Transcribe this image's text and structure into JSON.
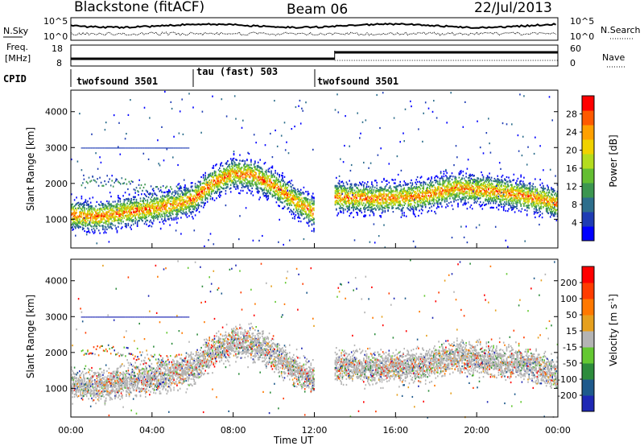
{
  "header": {
    "station": "Blackstone (fitACF)",
    "beam": "Beam 06",
    "date": "22/Jul/2013"
  },
  "noise_panel": {
    "left_label": "N.Sky",
    "right_label": "N.Search",
    "left_ticks": [
      "10^5",
      "10^0"
    ],
    "right_ticks": [
      "10^5",
      "10^0"
    ]
  },
  "freq_panel": {
    "left_label_1": "Freq.",
    "left_label_2": "[MHz]",
    "left_ticks": [
      "18",
      "8"
    ],
    "right_label": "Nave",
    "right_ticks": [
      "60",
      "0"
    ]
  },
  "cpid": {
    "label": "CPID",
    "segments": [
      {
        "name": "twofsound 3501",
        "start_h": 0
      },
      {
        "name": "tau (fast) 503",
        "start_h": 6
      },
      {
        "name": "twofsound 3501",
        "start_h": 12
      }
    ]
  },
  "xaxis": {
    "label": "Time UT",
    "ticks": [
      "00:00",
      "04:00",
      "08:00",
      "12:00",
      "16:00",
      "20:00",
      "00:00"
    ]
  },
  "chart_data": [
    {
      "type": "heatmap",
      "title": "",
      "xlabel": "Time UT",
      "ylabel": "Slant Range [km]",
      "xlim_hours": [
        0,
        24
      ],
      "ylim": [
        200,
        4600
      ],
      "y_ticks": [
        1000,
        2000,
        3000,
        4000
      ],
      "colorbar": {
        "label": "Power [dB]",
        "ticks": [
          "28",
          "24",
          "20",
          "16",
          "12",
          "8",
          "4"
        ],
        "colors": [
          "#0000ff",
          "#1e3cb4",
          "#2d6e8c",
          "#3c9650",
          "#64be32",
          "#b4dc1e",
          "#f0d200",
          "#ffa000",
          "#ff5a00",
          "#ff0000"
        ]
      },
      "band": [
        {
          "t": 0.0,
          "r": 1150
        },
        {
          "t": 1.0,
          "r": 1080
        },
        {
          "t": 2.0,
          "r": 1150
        },
        {
          "t": 3.0,
          "r": 1250
        },
        {
          "t": 4.0,
          "r": 1320
        },
        {
          "t": 5.0,
          "r": 1420
        },
        {
          "t": 6.0,
          "r": 1580
        },
        {
          "t": 7.0,
          "r": 2050
        },
        {
          "t": 8.0,
          "r": 2300
        },
        {
          "t": 9.0,
          "r": 2250
        },
        {
          "t": 10.0,
          "r": 1950
        },
        {
          "t": 11.0,
          "r": 1550
        },
        {
          "t": 12.0,
          "r": 1200
        },
        {
          "t": 13.0,
          "r": 1650
        },
        {
          "t": 15.0,
          "r": 1600
        },
        {
          "t": 17.0,
          "r": 1650
        },
        {
          "t": 19.0,
          "r": 1900
        },
        {
          "t": 21.0,
          "r": 1800
        },
        {
          "t": 23.0,
          "r": 1600
        },
        {
          "t": 24.0,
          "r": 1450
        }
      ]
    },
    {
      "type": "heatmap",
      "title": "",
      "xlabel": "Time UT",
      "ylabel": "Slant Range [km]",
      "xlim_hours": [
        0,
        24
      ],
      "ylim": [
        200,
        4600
      ],
      "y_ticks": [
        1000,
        2000,
        3000,
        4000
      ],
      "colorbar": {
        "label": "Velocity [m s^-1]",
        "ticks": [
          "200",
          "100",
          "50",
          "15",
          "-15",
          "-50",
          "-100",
          "-200"
        ],
        "colors": [
          "#1e28b4",
          "#1e5a8c",
          "#2d8c3c",
          "#64c832",
          "#b4b4b4",
          "#e6a01e",
          "#ff7800",
          "#ff3c00",
          "#ff0000"
        ]
      },
      "band": [
        {
          "t": 0.0,
          "r": 1150
        },
        {
          "t": 1.0,
          "r": 1080
        },
        {
          "t": 2.0,
          "r": 1150
        },
        {
          "t": 3.0,
          "r": 1250
        },
        {
          "t": 4.0,
          "r": 1320
        },
        {
          "t": 5.0,
          "r": 1420
        },
        {
          "t": 6.0,
          "r": 1580
        },
        {
          "t": 7.0,
          "r": 2050
        },
        {
          "t": 8.0,
          "r": 2300
        },
        {
          "t": 9.0,
          "r": 2250
        },
        {
          "t": 10.0,
          "r": 1950
        },
        {
          "t": 11.0,
          "r": 1550
        },
        {
          "t": 12.0,
          "r": 1200
        },
        {
          "t": 13.0,
          "r": 1650
        },
        {
          "t": 15.0,
          "r": 1600
        },
        {
          "t": 17.0,
          "r": 1650
        },
        {
          "t": 19.0,
          "r": 1900
        },
        {
          "t": 21.0,
          "r": 1800
        },
        {
          "t": 23.0,
          "r": 1600
        },
        {
          "t": 24.0,
          "r": 1450
        }
      ]
    }
  ]
}
